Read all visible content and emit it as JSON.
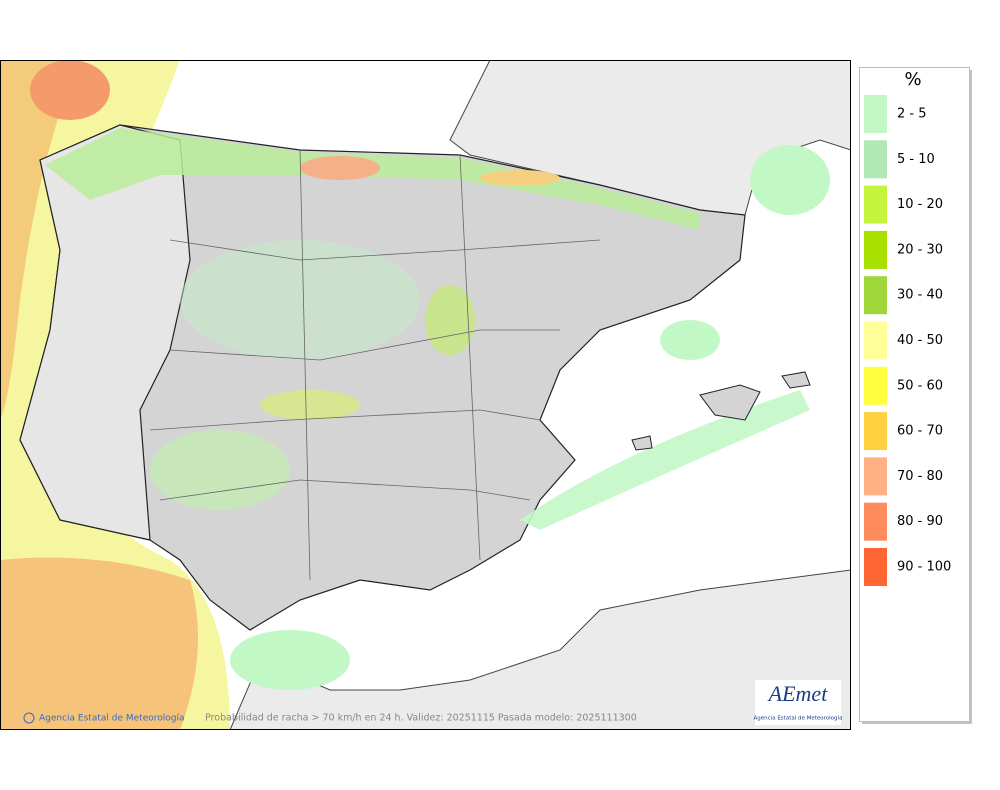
{
  "legend": {
    "title": "%",
    "items": [
      {
        "label": "2 - 5",
        "color": "#c2f7c6"
      },
      {
        "label": "5 - 10",
        "color": "#b0e8b6"
      },
      {
        "label": "10 - 20",
        "color": "#c4f53c"
      },
      {
        "label": "20 - 30",
        "color": "#a8e000"
      },
      {
        "label": "30 - 40",
        "color": "#9fd63a"
      },
      {
        "label": "40 - 50",
        "color": "#ffff9a"
      },
      {
        "label": "50 - 60",
        "color": "#ffff40"
      },
      {
        "label": "60 - 70",
        "color": "#ffd040"
      },
      {
        "label": "70 - 80",
        "color": "#ffb084"
      },
      {
        "label": "80 - 90",
        "color": "#ff8c5c"
      },
      {
        "label": "90 - 100",
        "color": "#ff6633"
      }
    ]
  },
  "footer": {
    "credit": "Agencia Estatal de Meteorología",
    "caption": "Probabilidad de racha > 70 km/h en 24 h. Validez: 20251115 Pasada modelo: 2025111300"
  },
  "logo": {
    "name": "AEmet",
    "subtitle": "Agencia Estatal de Meteorología"
  }
}
